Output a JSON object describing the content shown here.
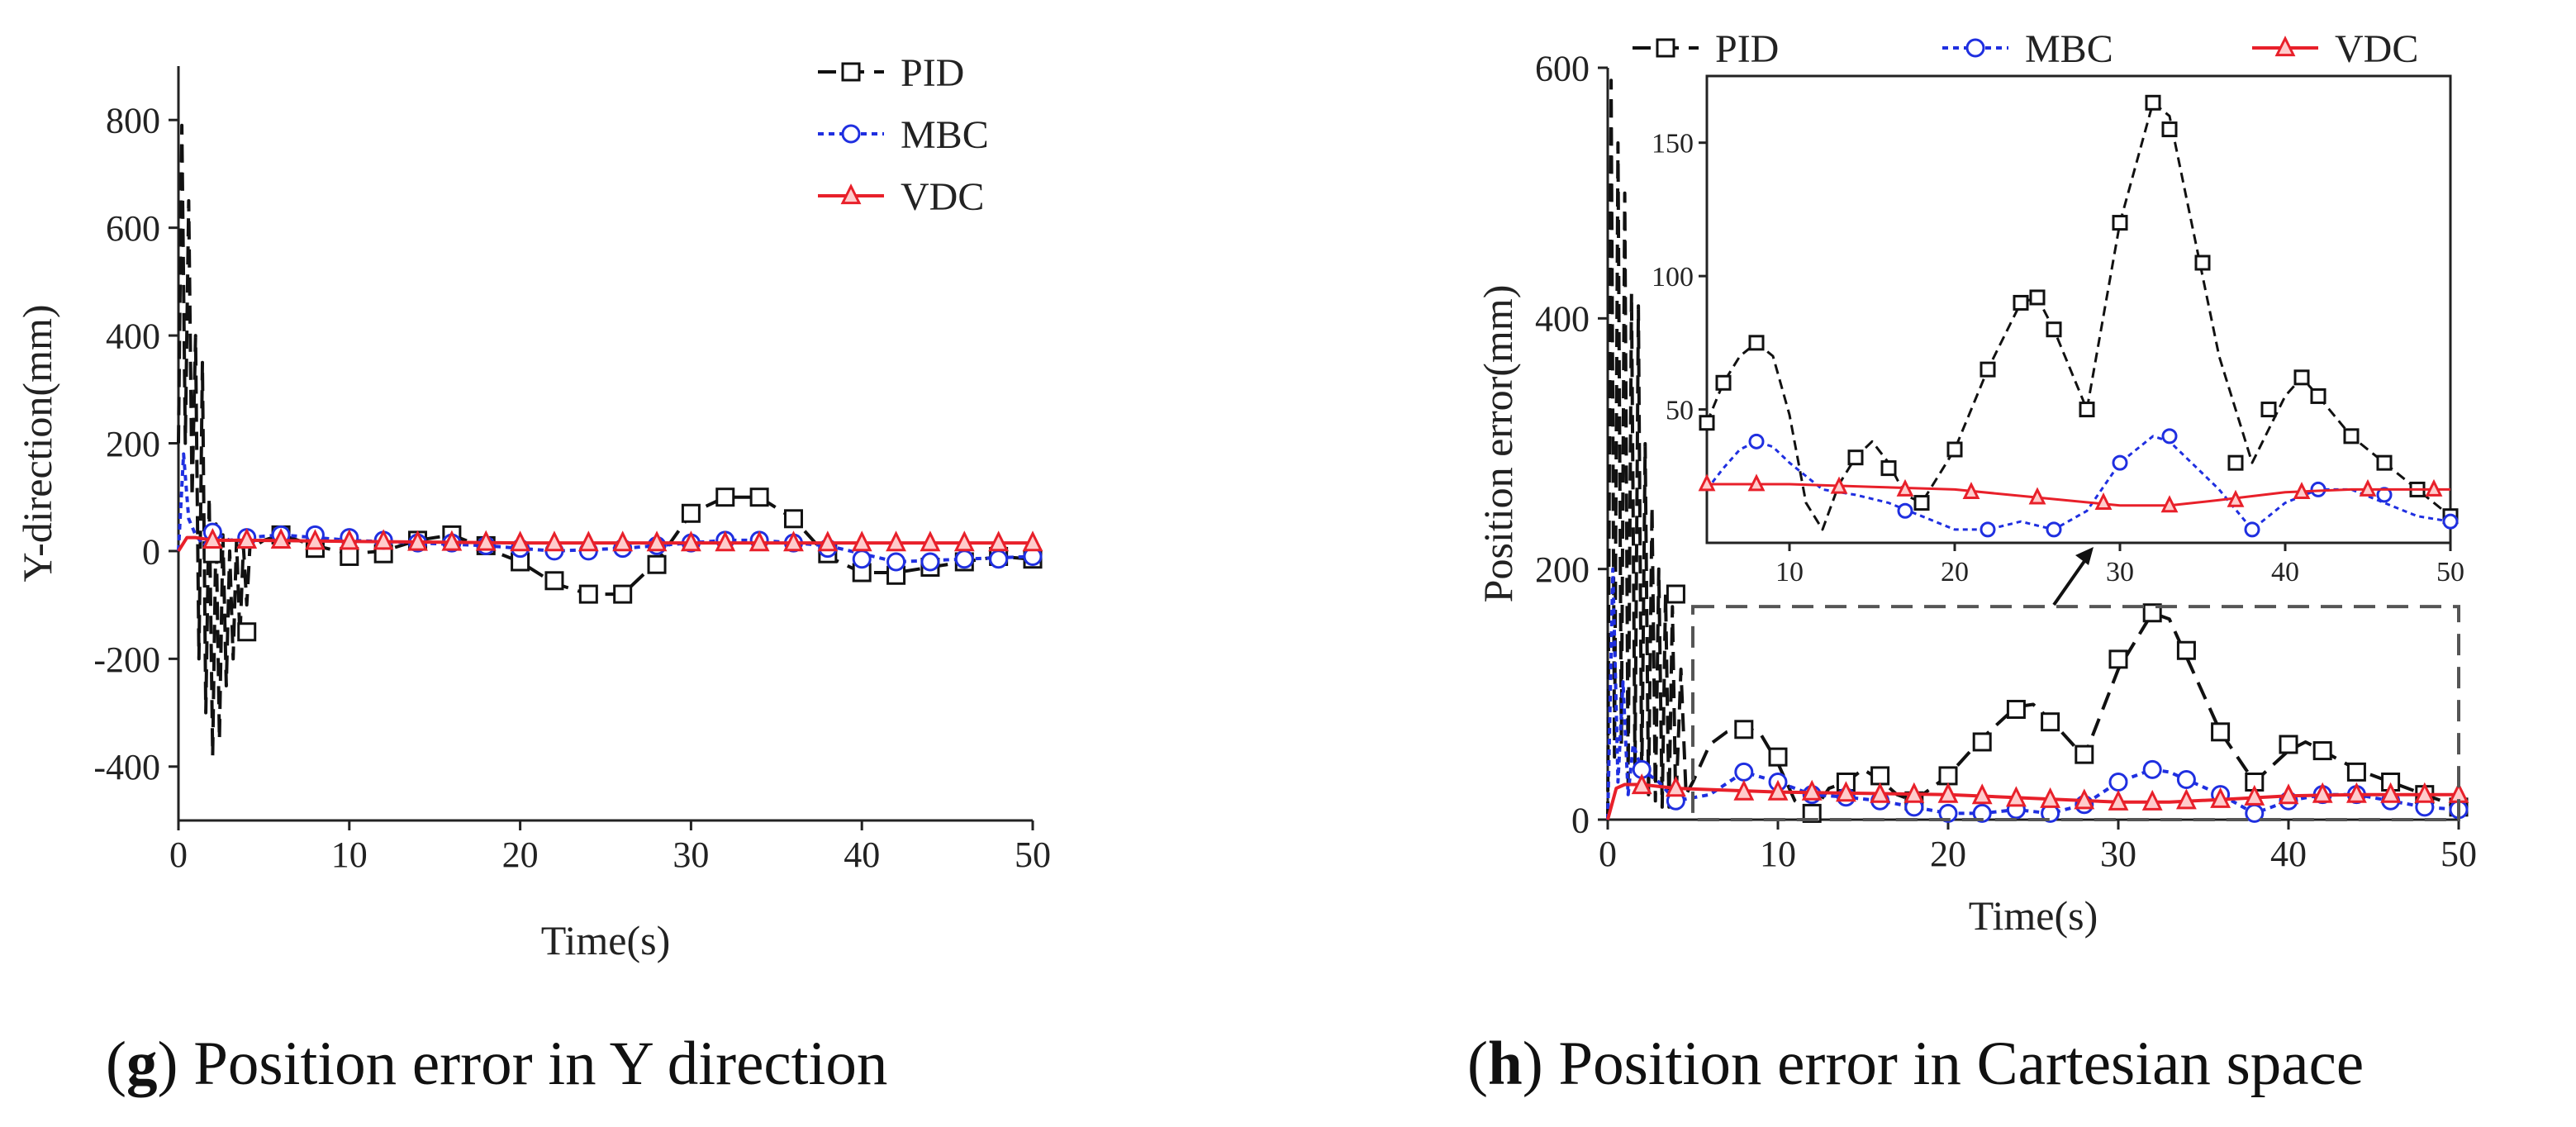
{
  "chart_data": [
    {
      "type": "line",
      "panel": "g",
      "xlabel": "Time(s)",
      "ylabel": "Y-direction(mm)",
      "xlim": [
        0,
        50
      ],
      "ylim": [
        -500,
        900
      ],
      "xticks": [
        0,
        10,
        20,
        30,
        40,
        50
      ],
      "yticks": [
        -400,
        -200,
        0,
        200,
        400,
        600,
        800
      ],
      "grid": false,
      "legend_position": "top-right",
      "series": [
        {
          "name": "PID",
          "color": "#111111",
          "dash": "dashed",
          "marker": "square",
          "x": [
            0,
            0.2,
            0.4,
            0.6,
            0.8,
            1.0,
            1.2,
            1.4,
            1.6,
            1.8,
            2.0,
            2.2,
            2.4,
            2.6,
            2.8,
            3.0,
            3.2,
            3.4,
            3.6,
            3.8,
            4.0,
            4.2,
            4.5,
            5,
            6,
            8,
            10,
            12,
            14,
            16,
            18,
            20,
            22,
            24,
            26,
            28,
            30,
            32,
            34,
            36,
            38,
            40,
            42,
            44,
            46,
            48,
            50
          ],
          "values": [
            200,
            790,
            200,
            650,
            100,
            400,
            -200,
            350,
            -300,
            100,
            -380,
            50,
            -350,
            30,
            -250,
            0,
            -200,
            20,
            -160,
            10,
            -100,
            20,
            10,
            20,
            30,
            10,
            -5,
            0,
            20,
            30,
            5,
            -20,
            -60,
            -80,
            -80,
            -20,
            70,
            100,
            100,
            60,
            -10,
            -40,
            -40,
            -30,
            -20,
            -10,
            -15
          ],
          "marker_x": [
            2,
            4,
            6,
            8,
            10,
            12,
            14,
            16,
            18,
            20,
            22,
            24,
            26,
            28,
            30,
            32,
            34,
            36,
            38,
            40,
            42,
            44,
            46,
            48,
            50
          ],
          "marker_values": [
            -5,
            -150,
            30,
            5,
            -10,
            -5,
            20,
            30,
            10,
            -20,
            -55,
            -80,
            -80,
            -25,
            70,
            100,
            100,
            60,
            -5,
            -40,
            -45,
            -30,
            -20,
            -10,
            -15
          ]
        },
        {
          "name": "MBC",
          "color": "#1f2fe0",
          "dash": "dotted",
          "marker": "circle",
          "x": [
            0,
            0.3,
            0.6,
            1,
            1.5,
            2,
            3,
            4,
            6,
            8,
            10,
            14,
            18,
            22,
            26,
            30,
            32,
            34,
            38,
            42,
            46,
            50
          ],
          "values": [
            0,
            180,
            60,
            30,
            10,
            35,
            20,
            25,
            30,
            25,
            20,
            15,
            10,
            0,
            5,
            15,
            20,
            20,
            10,
            -20,
            -15,
            -10
          ],
          "marker_x": [
            2,
            4,
            6,
            8,
            10,
            12,
            14,
            16,
            18,
            20,
            22,
            24,
            26,
            28,
            30,
            32,
            34,
            36,
            38,
            40,
            42,
            44,
            46,
            48,
            50
          ],
          "marker_values": [
            35,
            25,
            30,
            30,
            25,
            20,
            15,
            15,
            10,
            5,
            0,
            0,
            5,
            10,
            15,
            20,
            20,
            15,
            5,
            -15,
            -20,
            -20,
            -15,
            -15,
            -10
          ]
        },
        {
          "name": "VDC",
          "color": "#e8202a",
          "dash": "solid",
          "marker": "triangle",
          "x": [
            0,
            0.5,
            1,
            2,
            4,
            10,
            20,
            30,
            40,
            50
          ],
          "values": [
            0,
            25,
            25,
            20,
            20,
            18,
            15,
            15,
            15,
            15
          ],
          "marker_x": [
            2,
            4,
            6,
            8,
            10,
            12,
            14,
            16,
            18,
            20,
            22,
            24,
            26,
            28,
            30,
            32,
            34,
            36,
            38,
            40,
            42,
            44,
            46,
            48,
            50
          ],
          "marker_values": [
            20,
            20,
            20,
            18,
            18,
            18,
            16,
            16,
            16,
            15,
            15,
            15,
            15,
            15,
            15,
            15,
            15,
            15,
            15,
            15,
            15,
            15,
            15,
            15,
            15
          ]
        }
      ]
    },
    {
      "type": "line",
      "panel": "h",
      "xlabel": "Time(s)",
      "ylabel": "Position error(mm)",
      "xlim": [
        0,
        50
      ],
      "ylim": [
        0,
        600
      ],
      "xticks": [
        0,
        10,
        20,
        30,
        40,
        50
      ],
      "yticks": [
        0,
        200,
        400,
        600
      ],
      "grid": false,
      "legend_position": "top",
      "zoom_box": {
        "xlim": [
          5,
          50
        ],
        "ylim": [
          0,
          170
        ]
      },
      "series": [
        {
          "name": "PID",
          "color": "#111111",
          "dash": "dashed",
          "marker": "square",
          "x": [
            0,
            0.2,
            0.4,
            0.6,
            0.8,
            1.0,
            1.2,
            1.4,
            1.6,
            1.8,
            2.0,
            2.2,
            2.4,
            2.6,
            2.8,
            3.0,
            3.2,
            3.4,
            3.6,
            3.8,
            4.0,
            4.3,
            4.6,
            5,
            6,
            7,
            8,
            9,
            10,
            11,
            12,
            13,
            14,
            15,
            16,
            17,
            18,
            20,
            22,
            24,
            25,
            26,
            28,
            30,
            32,
            33,
            34,
            36,
            38,
            40,
            41,
            42,
            44,
            46,
            48,
            50
          ],
          "values": [
            0,
            590,
            50,
            540,
            60,
            500,
            30,
            420,
            40,
            410,
            30,
            300,
            20,
            250,
            15,
            200,
            10,
            180,
            10,
            170,
            10,
            120,
            20,
            30,
            60,
            70,
            75,
            68,
            45,
            15,
            5,
            25,
            30,
            40,
            32,
            20,
            15,
            35,
            65,
            90,
            92,
            80,
            50,
            120,
            165,
            160,
            130,
            70,
            30,
            55,
            62,
            55,
            40,
            30,
            20,
            10
          ],
          "marker_x": [
            4,
            8,
            10,
            12,
            14,
            16,
            18,
            20,
            22,
            24,
            26,
            28,
            30,
            32,
            34,
            36,
            38,
            40,
            42,
            44,
            46,
            48,
            50
          ],
          "marker_values": [
            180,
            72,
            50,
            5,
            30,
            35,
            15,
            35,
            62,
            88,
            78,
            52,
            128,
            165,
            135,
            70,
            30,
            60,
            55,
            38,
            30,
            20,
            10
          ]
        },
        {
          "name": "MBC",
          "color": "#1f2fe0",
          "dash": "dotted",
          "marker": "circle",
          "x": [
            0,
            0.3,
            0.6,
            0.9,
            1.2,
            1.5,
            2,
            3,
            4,
            6,
            8,
            10,
            12,
            14,
            16,
            18,
            20,
            22,
            24,
            26,
            28,
            30,
            32,
            33,
            34,
            36,
            38,
            40,
            42,
            44,
            46,
            48,
            50
          ],
          "values": [
            0,
            200,
            30,
            110,
            20,
            60,
            40,
            30,
            15,
            20,
            38,
            30,
            20,
            18,
            15,
            10,
            5,
            5,
            8,
            5,
            12,
            30,
            40,
            38,
            32,
            20,
            5,
            15,
            20,
            20,
            15,
            10,
            8
          ],
          "marker_x": [
            2,
            4,
            8,
            10,
            12,
            14,
            16,
            18,
            20,
            22,
            24,
            26,
            28,
            30,
            32,
            34,
            36,
            38,
            40,
            42,
            44,
            46,
            48,
            50
          ],
          "marker_values": [
            40,
            15,
            38,
            30,
            20,
            18,
            15,
            10,
            5,
            5,
            8,
            5,
            12,
            30,
            40,
            32,
            20,
            5,
            15,
            20,
            20,
            15,
            10,
            8
          ]
        },
        {
          "name": "VDC",
          "color": "#e8202a",
          "dash": "solid",
          "marker": "triangle",
          "x": [
            0,
            0.5,
            1,
            2,
            4,
            10,
            20,
            25,
            30,
            33,
            36,
            40,
            44,
            48,
            50
          ],
          "values": [
            0,
            25,
            28,
            28,
            25,
            22,
            20,
            17,
            14,
            14,
            16,
            19,
            20,
            20,
            20
          ],
          "marker_x": [
            2,
            4,
            8,
            10,
            12,
            14,
            16,
            18,
            20,
            22,
            24,
            26,
            28,
            30,
            32,
            34,
            36,
            38,
            40,
            42,
            44,
            46,
            48,
            50
          ],
          "marker_values": [
            27,
            25,
            22,
            22,
            22,
            21,
            20,
            20,
            20,
            19,
            17,
            16,
            15,
            14,
            14,
            15,
            16,
            18,
            19,
            20,
            20,
            20,
            20,
            20
          ]
        }
      ],
      "inset": {
        "xlim": [
          5,
          50
        ],
        "ylim": [
          0,
          175
        ],
        "xticks": [
          10,
          20,
          30,
          40,
          50
        ],
        "yticks": [
          50,
          100,
          150
        ],
        "series": [
          {
            "name": "PID",
            "x": [
              5,
              6,
              7,
              8,
              9,
              10,
              11,
              12,
              13,
              14,
              15,
              16,
              17,
              18,
              20,
              22,
              24,
              25,
              26,
              28,
              30,
              32,
              33,
              34,
              36,
              38,
              40,
              41,
              42,
              44,
              46,
              48,
              50
            ],
            "values": [
              45,
              60,
              70,
              75,
              70,
              48,
              15,
              5,
              22,
              32,
              38,
              30,
              18,
              15,
              35,
              65,
              90,
              92,
              80,
              50,
              120,
              165,
              160,
              130,
              70,
              30,
              55,
              62,
              55,
              40,
              30,
              20,
              10
            ],
            "marker_x": [
              5,
              6,
              8,
              14,
              16,
              18,
              20,
              22,
              24,
              25,
              26,
              28,
              30,
              32,
              33,
              35,
              37,
              39,
              41,
              42,
              44,
              46,
              48,
              50
            ],
            "marker_values": [
              45,
              60,
              75,
              32,
              28,
              15,
              35,
              65,
              90,
              92,
              80,
              50,
              120,
              165,
              155,
              105,
              30,
              50,
              62,
              55,
              40,
              30,
              20,
              10
            ]
          },
          {
            "name": "MBC",
            "x": [
              5,
              6,
              7,
              8,
              9,
              10,
              12,
              14,
              16,
              18,
              20,
              22,
              24,
              26,
              28,
              30,
              32,
              33,
              34,
              36,
              38,
              40,
              42,
              44,
              46,
              48,
              50
            ],
            "values": [
              20,
              28,
              35,
              38,
              36,
              30,
              20,
              18,
              15,
              10,
              5,
              5,
              8,
              5,
              12,
              30,
              40,
              38,
              32,
              20,
              5,
              15,
              20,
              20,
              15,
              10,
              8
            ],
            "marker_x": [
              8,
              17,
              22,
              26,
              30,
              33,
              38,
              42,
              46,
              50
            ],
            "marker_values": [
              38,
              12,
              5,
              5,
              30,
              40,
              5,
              20,
              18,
              8
            ]
          },
          {
            "name": "VDC",
            "x": [
              5,
              10,
              15,
              20,
              25,
              30,
              33,
              36,
              40,
              44,
              48,
              50
            ],
            "values": [
              22,
              22,
              21,
              20,
              17,
              14,
              14,
              16,
              19,
              20,
              20,
              20
            ],
            "marker_x": [
              5,
              8,
              13,
              17,
              21,
              25,
              29,
              33,
              37,
              41,
              45,
              49
            ],
            "marker_values": [
              22,
              22,
              21,
              20,
              19,
              17,
              15,
              14,
              16,
              19,
              20,
              20
            ]
          }
        ]
      }
    }
  ],
  "captions": {
    "g": {
      "letter": "g",
      "text": ") Position error in Y direction"
    },
    "h": {
      "letter": "h",
      "text": ") Position error in Cartesian space"
    }
  }
}
